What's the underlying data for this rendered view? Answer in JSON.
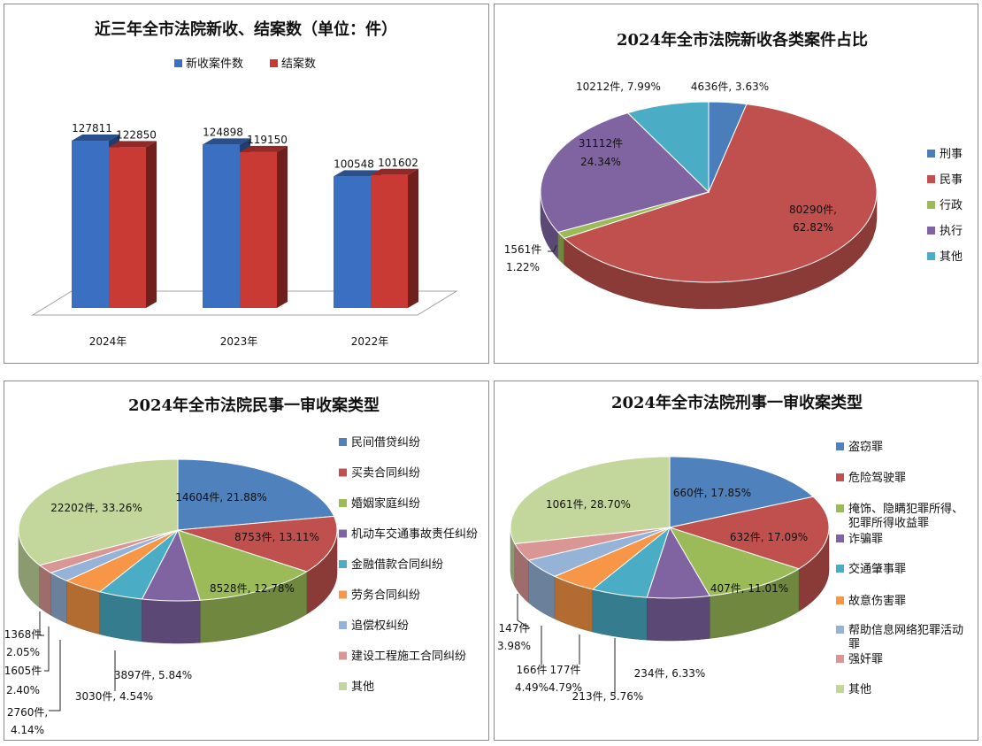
{
  "chart_data": [
    {
      "type": "bar",
      "title": "近三年全市法院新收、结案数（单位：件）",
      "categories": [
        "2024年",
        "2023年",
        "2022年"
      ],
      "series": [
        {
          "name": "新收案件数",
          "values": [
            127811,
            124898,
            100548
          ],
          "color": "#3a6fc2"
        },
        {
          "name": "结案数",
          "values": [
            122850,
            119150,
            101602
          ],
          "color": "#c93a35"
        }
      ],
      "ylim": [
        0,
        140000
      ],
      "grid": false,
      "legend": "top"
    },
    {
      "type": "pie",
      "title": "2024年全市法院新收各类案件占比",
      "categories": [
        "刑事",
        "民事",
        "行政",
        "执行",
        "其他"
      ],
      "values": [
        4636,
        80290,
        1561,
        31112,
        10212
      ],
      "percents": [
        "3.63%",
        "62.82%",
        "1.22%",
        "24.34%",
        "7.99%"
      ],
      "data_labels": [
        "4636件, 3.63%",
        "80290件, 62.82%",
        "1561件 1.22%",
        "31112件 24.34%",
        "10212件, 7.99%"
      ],
      "colors": [
        "#4a7ebb",
        "#c0504d",
        "#9bbb59",
        "#8064a2",
        "#4bacc6"
      ],
      "legend": "right"
    },
    {
      "type": "pie",
      "title": "2024年全市法院民事一审收案类型",
      "categories": [
        "民间借贷纠纷",
        "买卖合同纠纷",
        "婚姻家庭纠纷",
        "机动车交通事故责任纠纷",
        "金融借款合同纠纷",
        "劳务合同纠纷",
        "追偿权纠纷",
        "建设工程施工合同纠纷",
        "其他"
      ],
      "values": [
        14604,
        8753,
        8528,
        3897,
        3030,
        2760,
        1605,
        1368,
        22202
      ],
      "percents": [
        "21.88%",
        "13.11%",
        "12.78%",
        "5.84%",
        "4.54%",
        "4.14%",
        "2.40%",
        "2.05%",
        "33.26%"
      ],
      "data_labels": [
        "14604件, 21.88%",
        "8753件, 13.11%",
        "8528件, 12.78%",
        "3897件, 5.84%",
        "3030件, 4.54%",
        "2760件, 4.14%",
        "1605件 2.40%",
        "1368件 2.05%",
        "22202件, 33.26%"
      ],
      "colors": [
        "#4f81bd",
        "#c0504d",
        "#9bbb59",
        "#8064a2",
        "#4bacc6",
        "#f79646",
        "#95b3d7",
        "#da9694",
        "#c3d69b"
      ],
      "legend": "right"
    },
    {
      "type": "pie",
      "title": "2024年全市法院刑事一审收案类型",
      "categories": [
        "盗窃罪",
        "危险驾驶罪",
        "掩饰、隐瞒犯罪所得、犯罪所得收益罪",
        "诈骗罪",
        "交通肇事罪",
        "故意伤害罪",
        "帮助信息网络犯罪活动罪",
        "强奸罪",
        "其他"
      ],
      "values": [
        660,
        632,
        407,
        234,
        213,
        177,
        166,
        147,
        1061
      ],
      "percents": [
        "17.85%",
        "17.09%",
        "11.01%",
        "6.33%",
        "5.76%",
        "4.79%",
        "4.49%",
        "3.98%",
        "28.70%"
      ],
      "data_labels": [
        "660件, 17.85%",
        "632件, 17.09%",
        "407件, 11.01%",
        "234件, 6.33%",
        "213件, 5.76%",
        "177件 4.79%",
        "166件 4.49%",
        "147件 3.98%",
        "1061件, 28.70%"
      ],
      "colors": [
        "#4f81bd",
        "#c0504d",
        "#9bbb59",
        "#8064a2",
        "#4bacc6",
        "#f79646",
        "#95b3d7",
        "#da9694",
        "#c3d69b"
      ],
      "legend_lines": [
        [
          "盗窃罪"
        ],
        [
          "危险驾驶罪"
        ],
        [
          "掩饰、隐瞒犯罪所得、",
          "犯罪所得收益罪"
        ],
        [
          "诈骗罪"
        ],
        [
          "交通肇事罪"
        ],
        [
          "故意伤害罪"
        ],
        [
          "帮助信息网络犯罪活动",
          "罪"
        ],
        [
          "强奸罪"
        ],
        [
          "其他"
        ]
      ],
      "legend": "right"
    }
  ]
}
